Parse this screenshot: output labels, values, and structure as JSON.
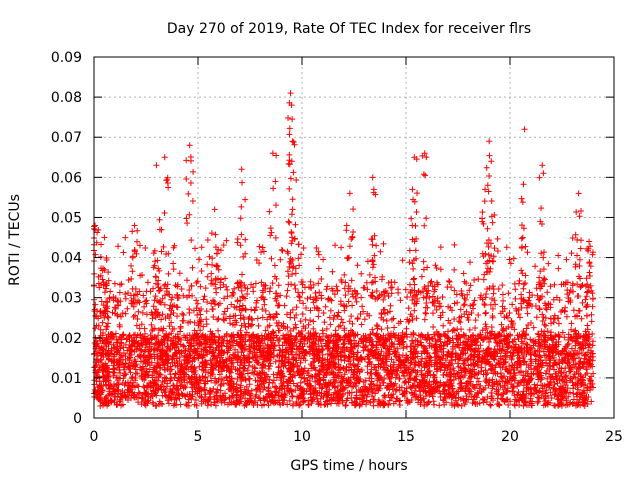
{
  "chart_data": {
    "type": "scatter",
    "title": "Day 270 of 2019, Rate Of TEC Index for receiver flrs",
    "xlabel": "GPS time / hours",
    "ylabel": "ROTI / TECUs",
    "xlim": [
      0,
      25
    ],
    "ylim": [
      0,
      0.09
    ],
    "xticks": [
      "0",
      "5",
      "10",
      "15",
      "20",
      "25"
    ],
    "yticks": [
      "0",
      "0.01",
      "0.02",
      "0.03",
      "0.04",
      "0.05",
      "0.06",
      "0.07",
      "0.08",
      "0.09"
    ],
    "grid": true,
    "marker": "+",
    "color": "#ff0000",
    "peaks": [
      {
        "x": 0.05,
        "y": 0.048
      },
      {
        "x": 0.5,
        "y": 0.045
      },
      {
        "x": 1.95,
        "y": 0.048
      },
      {
        "x": 3.0,
        "y": 0.063
      },
      {
        "x": 3.4,
        "y": 0.065
      },
      {
        "x": 4.6,
        "y": 0.068
      },
      {
        "x": 5.8,
        "y": 0.052
      },
      {
        "x": 7.1,
        "y": 0.062
      },
      {
        "x": 8.6,
        "y": 0.066
      },
      {
        "x": 9.45,
        "y": 0.081
      },
      {
        "x": 9.5,
        "y": 0.078
      },
      {
        "x": 9.55,
        "y": 0.069
      },
      {
        "x": 12.3,
        "y": 0.056
      },
      {
        "x": 13.4,
        "y": 0.06
      },
      {
        "x": 15.4,
        "y": 0.065
      },
      {
        "x": 15.9,
        "y": 0.066
      },
      {
        "x": 18.8,
        "y": 0.057
      },
      {
        "x": 19.0,
        "y": 0.069
      },
      {
        "x": 19.1,
        "y": 0.064
      },
      {
        "x": 20.7,
        "y": 0.072
      },
      {
        "x": 21.55,
        "y": 0.063
      },
      {
        "x": 23.3,
        "y": 0.056
      },
      {
        "x": 23.8,
        "y": 0.044
      }
    ]
  }
}
